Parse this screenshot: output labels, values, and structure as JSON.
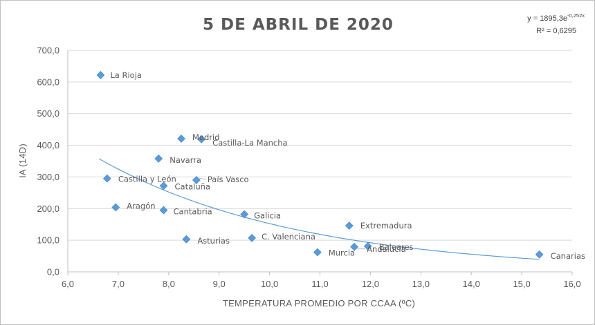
{
  "chart_data": {
    "type": "scatter",
    "title": "5 DE ABRIL DE 2020",
    "xlabel": "TEMPERATURA  PROMEDIO POR CCAA (ºC)",
    "ylabel": "IA (14D)",
    "xlim": [
      6,
      16
    ],
    "ylim": [
      0,
      700
    ],
    "x_ticks": [
      "6,0",
      "7,0",
      "8,0",
      "9,0",
      "10,0",
      "11,0",
      "12,0",
      "13,0",
      "14,0",
      "15,0",
      "16,0"
    ],
    "y_ticks": [
      "0,0",
      "100,0",
      "200,0",
      "300,0",
      "400,0",
      "500,0",
      "600,0",
      "700,0"
    ],
    "grid": "horizontal",
    "marker_color": "#5b9bd5",
    "trendline": {
      "type": "exponential",
      "a": 1895.3,
      "b": -0.252,
      "x_range": [
        6.62,
        15.35
      ],
      "equation_text": "y = 1895,3e",
      "equation_exponent": "-0,252x",
      "r2_text": "R² = 0,6295"
    },
    "points": [
      {
        "label": "La Rioja",
        "x": 6.65,
        "y": 622
      },
      {
        "label": "Madrid",
        "x": 8.25,
        "y": 421
      },
      {
        "label": "Castilla-La Mancha",
        "x": 8.65,
        "y": 419
      },
      {
        "label": "Navarra",
        "x": 7.8,
        "y": 358
      },
      {
        "label": "Castilla y León",
        "x": 6.78,
        "y": 295
      },
      {
        "label": "Cataluña",
        "x": 7.9,
        "y": 272
      },
      {
        "label": "País Vasco",
        "x": 8.55,
        "y": 290
      },
      {
        "label": "Aragón",
        "x": 6.95,
        "y": 204
      },
      {
        "label": "Cantabria",
        "x": 7.9,
        "y": 195
      },
      {
        "label": "Galicia",
        "x": 9.5,
        "y": 182
      },
      {
        "label": "Asturias",
        "x": 8.35,
        "y": 103
      },
      {
        "label": "C. Valenciana",
        "x": 9.65,
        "y": 107
      },
      {
        "label": "Extremadura",
        "x": 11.58,
        "y": 146
      },
      {
        "label": "Murcia",
        "x": 10.95,
        "y": 62
      },
      {
        "label": "Andalucía",
        "x": 11.68,
        "y": 79
      },
      {
        "label": "Baleares",
        "x": 11.95,
        "y": 81
      },
      {
        "label": "Canarias",
        "x": 15.35,
        "y": 55
      }
    ]
  }
}
